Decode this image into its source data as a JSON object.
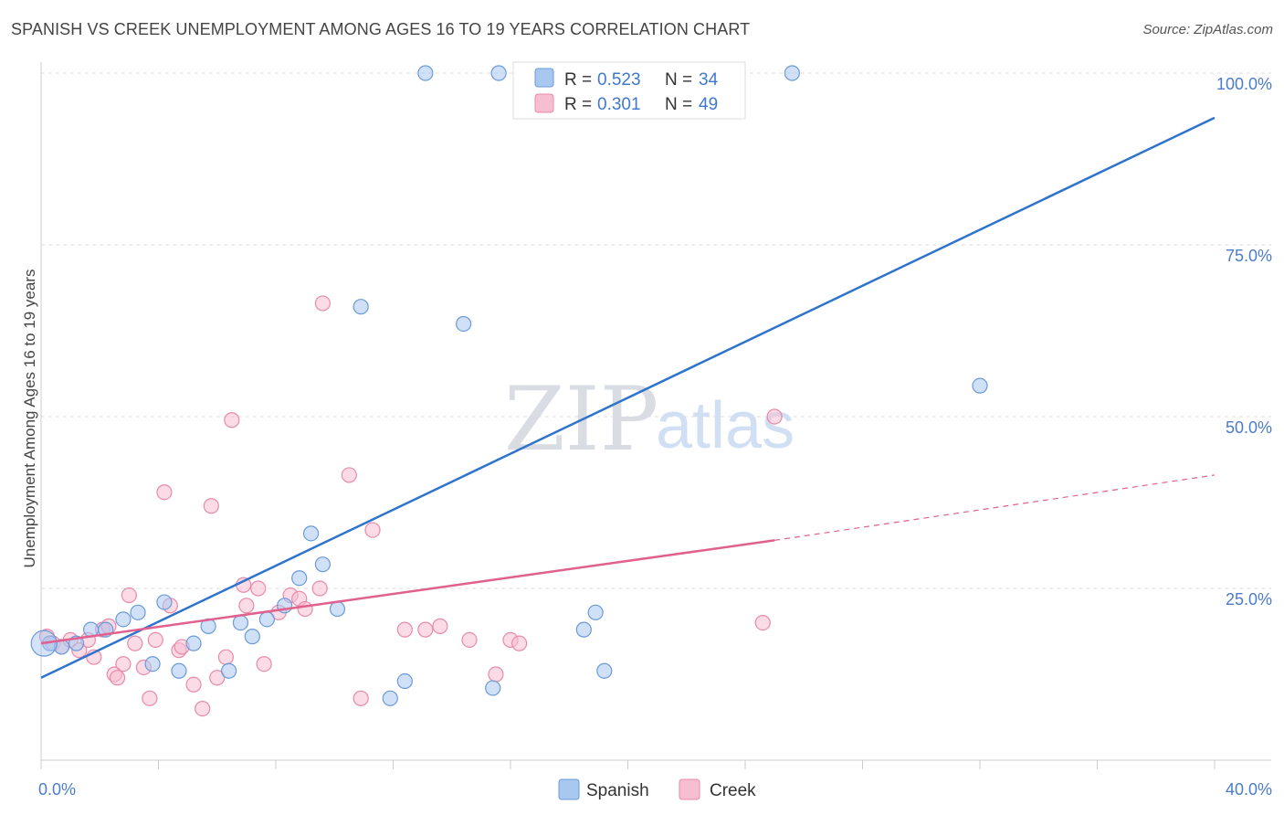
{
  "header": {
    "title": "SPANISH VS CREEK UNEMPLOYMENT AMONG AGES 16 TO 19 YEARS CORRELATION CHART",
    "source": "Source: ZipAtlas.com"
  },
  "watermark": {
    "zip": "ZIP",
    "atlas": "atlas"
  },
  "legend": {
    "spanish": {
      "r_label": "R =",
      "r_value": "0.523",
      "n_label": "N =",
      "n_value": "34"
    },
    "creek": {
      "r_label": "R =",
      "r_value": "0.301",
      "n_label": "N =",
      "n_value": "49"
    }
  },
  "colors": {
    "spanish_fill": "#a9c8f0",
    "spanish_stroke": "#6b9ad8",
    "spanish_line": "#2f74cc",
    "creek_fill": "#f7bdd0",
    "creek_stroke": "#e88aab",
    "creek_line": "#e0608e",
    "grid": "#dddddd",
    "tick_text": "#4a7cc9"
  },
  "chart_data": {
    "type": "scatter",
    "title": "SPANISH VS CREEK UNEMPLOYMENT AMONG AGES 16 TO 19 YEARS CORRELATION CHART",
    "xlabel": "",
    "ylabel": "Unemployment Among Ages 16 to 19 years",
    "xlim": [
      0,
      40
    ],
    "ylim": [
      0,
      100
    ],
    "x_ticks": [
      0,
      4,
      8,
      12,
      16,
      20,
      24,
      28,
      32,
      36,
      40
    ],
    "x_tick_labels": {
      "0": "0.0%",
      "40": "40.0%"
    },
    "y_ticks": [
      25,
      50,
      75,
      100
    ],
    "y_tick_labels": [
      "25.0%",
      "50.0%",
      "75.0%",
      "100.0%"
    ],
    "grid": true,
    "legend_position": "top-center",
    "series": [
      {
        "name": "Spanish",
        "r": 0.523,
        "n": 34,
        "trend": {
          "x0": 0,
          "y0": 12.0,
          "x1": 40,
          "y1": 93.5,
          "dashed_from": null
        },
        "points": [
          [
            0.3,
            17.0
          ],
          [
            0.7,
            16.5
          ],
          [
            1.2,
            17.0
          ],
          [
            1.7,
            19.0
          ],
          [
            2.2,
            19.0
          ],
          [
            2.8,
            20.5
          ],
          [
            3.3,
            21.5
          ],
          [
            3.8,
            14.0
          ],
          [
            4.2,
            23.0
          ],
          [
            4.7,
            13.0
          ],
          [
            5.2,
            17.0
          ],
          [
            5.7,
            19.5
          ],
          [
            6.4,
            13.0
          ],
          [
            6.8,
            20.0
          ],
          [
            7.2,
            18.0
          ],
          [
            7.7,
            20.5
          ],
          [
            8.3,
            22.5
          ],
          [
            8.8,
            26.5
          ],
          [
            9.2,
            33.0
          ],
          [
            9.6,
            28.5
          ],
          [
            10.1,
            22.0
          ],
          [
            10.9,
            66.0
          ],
          [
            11.9,
            9.0
          ],
          [
            12.4,
            11.5
          ],
          [
            13.1,
            100.0
          ],
          [
            14.4,
            63.5
          ],
          [
            15.4,
            10.5
          ],
          [
            15.6,
            100.0
          ],
          [
            18.5,
            19.0
          ],
          [
            18.9,
            21.5
          ],
          [
            19.2,
            13.0
          ],
          [
            25.6,
            100.0
          ],
          [
            32.0,
            54.5
          ],
          [
            0.1,
            17.0
          ]
        ]
      },
      {
        "name": "Creek",
        "r": 0.301,
        "n": 49,
        "trend": {
          "x0": 0,
          "y0": 17.0,
          "x1": 25.0,
          "y1": 32.0,
          "dashed_to_x": 40,
          "dashed_to_y": 41.5
        },
        "points": [
          [
            0.2,
            18.0
          ],
          [
            0.4,
            17.0
          ],
          [
            0.7,
            16.5
          ],
          [
            1.0,
            17.5
          ],
          [
            1.3,
            16.0
          ],
          [
            1.6,
            17.5
          ],
          [
            1.8,
            15.0
          ],
          [
            2.1,
            19.0
          ],
          [
            2.3,
            19.5
          ],
          [
            2.5,
            12.5
          ],
          [
            2.6,
            12.0
          ],
          [
            2.8,
            14.0
          ],
          [
            3.0,
            24.0
          ],
          [
            3.2,
            17.0
          ],
          [
            3.5,
            13.5
          ],
          [
            3.7,
            9.0
          ],
          [
            3.9,
            17.5
          ],
          [
            4.2,
            39.0
          ],
          [
            4.4,
            22.5
          ],
          [
            4.7,
            16.0
          ],
          [
            4.8,
            16.5
          ],
          [
            5.2,
            11.0
          ],
          [
            5.5,
            7.5
          ],
          [
            5.8,
            37.0
          ],
          [
            6.0,
            12.0
          ],
          [
            6.3,
            15.0
          ],
          [
            6.5,
            49.5
          ],
          [
            6.9,
            25.5
          ],
          [
            7.0,
            22.5
          ],
          [
            7.4,
            25.0
          ],
          [
            7.6,
            14.0
          ],
          [
            8.1,
            21.5
          ],
          [
            8.5,
            24.0
          ],
          [
            8.8,
            23.5
          ],
          [
            9.0,
            22.0
          ],
          [
            9.5,
            25.0
          ],
          [
            9.6,
            66.5
          ],
          [
            10.5,
            41.5
          ],
          [
            10.9,
            9.0
          ],
          [
            11.3,
            33.5
          ],
          [
            12.4,
            19.0
          ],
          [
            13.1,
            19.0
          ],
          [
            13.6,
            19.5
          ],
          [
            14.6,
            17.5
          ],
          [
            15.5,
            12.5
          ],
          [
            16.0,
            17.5
          ],
          [
            16.3,
            17.0
          ],
          [
            24.6,
            20.0
          ],
          [
            25.0,
            50.0
          ]
        ]
      }
    ]
  },
  "bottom_legend": {
    "spanish": "Spanish",
    "creek": "Creek"
  }
}
